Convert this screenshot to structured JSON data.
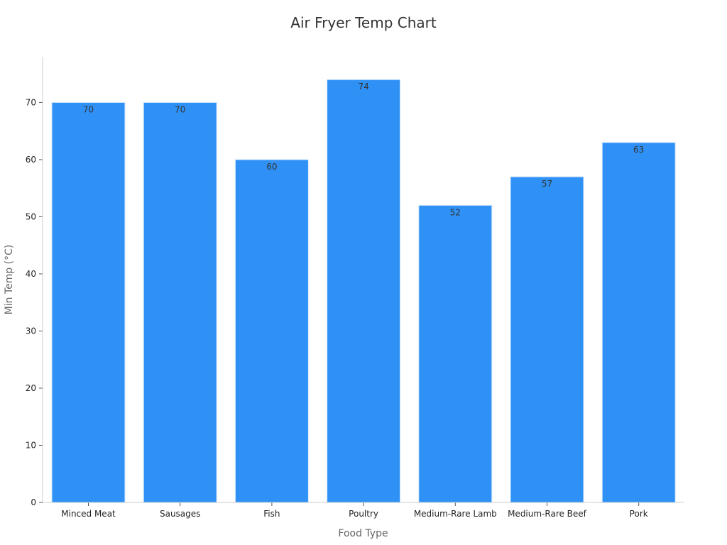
{
  "chart_data": {
    "type": "bar",
    "title": "Air Fryer Temp Chart",
    "xlabel": "Food Type",
    "ylabel": "Min Temp (°C)",
    "categories": [
      "Minced Meat",
      "Sausages",
      "Fish",
      "Poultry",
      "Medium-Rare Lamb",
      "Medium-Rare Beef",
      "Pork"
    ],
    "values": [
      70,
      70,
      60,
      74,
      52,
      57,
      63
    ],
    "ylim": [
      0,
      78
    ],
    "yticks": [
      0,
      10,
      20,
      30,
      40,
      50,
      60,
      70
    ],
    "grid": false,
    "bar_color": "#2f91f6",
    "bar_edge_color": "#d6e8fb",
    "axis_color": "#cccccc"
  }
}
